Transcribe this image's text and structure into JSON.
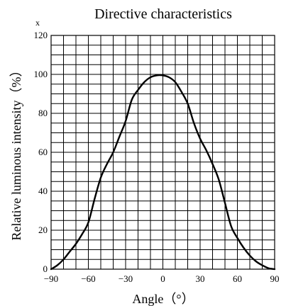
{
  "chart_data": {
    "type": "line",
    "title": "Directive characteristics",
    "xlabel": "Angle（°）",
    "ylabel": "Relative luminous intensity（%）",
    "corner_label": "x",
    "xlim": [
      -90,
      90
    ],
    "ylim": [
      0,
      120
    ],
    "xticks": [
      -90,
      -60,
      -30,
      0,
      30,
      60,
      90
    ],
    "yticks": [
      0,
      20,
      40,
      60,
      80,
      100,
      120
    ],
    "grid": true,
    "series": [
      {
        "x": [
          -90,
          -85,
          -80,
          -75,
          -70,
          -65,
          -60,
          -55,
          -50,
          -45,
          -40,
          -35,
          -30,
          -25,
          -20,
          -15,
          -10,
          -5,
          0,
          5,
          10,
          15,
          20,
          25,
          30,
          35,
          40,
          45,
          50,
          55,
          60,
          65,
          70,
          75,
          80,
          85,
          90
        ],
        "y": [
          0,
          2,
          5,
          9,
          13,
          18,
          24,
          36,
          47,
          54,
          60,
          68,
          76,
          87,
          92,
          96,
          98.5,
          99.5,
          99.5,
          98.5,
          96,
          91,
          85,
          75,
          67,
          61,
          54,
          46,
          34,
          22,
          16,
          11,
          7,
          4,
          2,
          0.5,
          0
        ]
      }
    ]
  }
}
